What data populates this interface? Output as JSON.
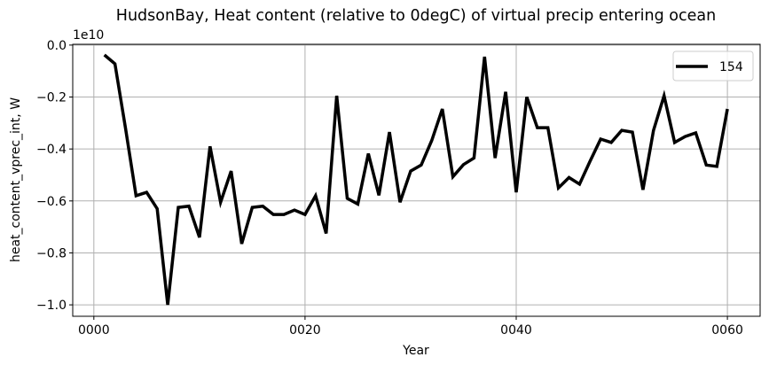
{
  "chart_data": {
    "type": "line",
    "title": "HudsonBay, Heat content (relative to 0degC) of virtual precip entering ocean",
    "xlabel": "Year",
    "ylabel": "heat_content_vprec_int, W",
    "y_offset_label": "1e10",
    "x_ticks": [
      0,
      20,
      40,
      60
    ],
    "x_tick_labels": [
      "0000",
      "0020",
      "0040",
      "0060"
    ],
    "y_ticks": [
      0.0,
      -0.2,
      -0.4,
      -0.6,
      -0.8,
      -1.0
    ],
    "y_tick_labels": [
      "0.0",
      "−0.2",
      "−0.4",
      "−0.6",
      "−0.8",
      "−1.0"
    ],
    "xlim": [
      -2.0,
      63.1
    ],
    "ylim": [
      -1.044,
      0.003
    ],
    "grid": true,
    "legend_position": "upper right",
    "line_color": "#000000",
    "grid_color": "#b0b0b0",
    "series": [
      {
        "name": "154",
        "x": [
          1,
          2,
          3,
          4,
          5,
          6,
          7,
          8,
          9,
          10,
          11,
          12,
          13,
          14,
          15,
          16,
          17,
          18,
          19,
          20,
          21,
          22,
          23,
          24,
          25,
          26,
          27,
          28,
          29,
          30,
          31,
          32,
          33,
          34,
          35,
          36,
          37,
          38,
          39,
          40,
          41,
          42,
          43,
          44,
          45,
          46,
          47,
          48,
          49,
          50,
          51,
          52,
          53,
          54,
          55,
          56,
          57,
          58,
          59,
          60
        ],
        "values": [
          -0.038,
          -0.072,
          -0.32,
          -0.58,
          -0.567,
          -0.63,
          -1.0,
          -0.625,
          -0.62,
          -0.74,
          -0.39,
          -0.605,
          -0.485,
          -0.765,
          -0.625,
          -0.62,
          -0.652,
          -0.652,
          -0.635,
          -0.652,
          -0.58,
          -0.725,
          -0.195,
          -0.59,
          -0.612,
          -0.418,
          -0.578,
          -0.335,
          -0.605,
          -0.485,
          -0.462,
          -0.367,
          -0.246,
          -0.507,
          -0.46,
          -0.435,
          -0.045,
          -0.435,
          -0.18,
          -0.567,
          -0.2,
          -0.318,
          -0.318,
          -0.55,
          -0.51,
          -0.535,
          -0.447,
          -0.362,
          -0.375,
          -0.328,
          -0.335,
          -0.557,
          -0.328,
          -0.195,
          -0.375,
          -0.352,
          -0.338,
          -0.462,
          -0.467,
          -0.246
        ]
      }
    ]
  }
}
